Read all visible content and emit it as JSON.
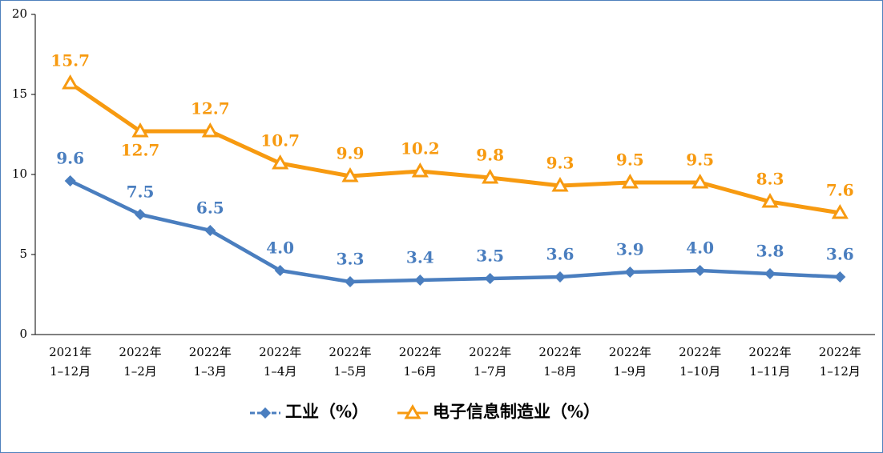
{
  "chart_data": {
    "type": "line",
    "categories": [
      [
        "2021年",
        "1–12月"
      ],
      [
        "2022年",
        "1–2月"
      ],
      [
        "2022年",
        "1–3月"
      ],
      [
        "2022年",
        "1–4月"
      ],
      [
        "2022年",
        "1–5月"
      ],
      [
        "2022年",
        "1–6月"
      ],
      [
        "2022年",
        "1–7月"
      ],
      [
        "2022年",
        "1–8月"
      ],
      [
        "2022年",
        "1–9月"
      ],
      [
        "2022年",
        "1–10月"
      ],
      [
        "2022年",
        "1–11月"
      ],
      [
        "2022年",
        "1–12月"
      ]
    ],
    "series": [
      {
        "name": "工业（%）",
        "color": "#4a7ebf",
        "marker": "diamond",
        "values": [
          9.6,
          7.5,
          6.5,
          4.0,
          3.3,
          3.4,
          3.5,
          3.6,
          3.9,
          4.0,
          3.8,
          3.6
        ],
        "value_labels": [
          "9.6",
          "7.5",
          "6.5",
          "4.0",
          "3.3",
          "3.4",
          "3.5",
          "3.6",
          "3.9",
          "4.0",
          "3.8",
          "3.6"
        ]
      },
      {
        "name": "电子信息制造业（%）",
        "color": "#f79a10",
        "marker": "triangle",
        "values": [
          15.7,
          12.7,
          12.7,
          10.7,
          9.9,
          10.2,
          9.8,
          9.3,
          9.5,
          9.5,
          8.3,
          7.6
        ],
        "value_labels": [
          "15.7",
          "12.7",
          "12.7",
          "10.7",
          "9.9",
          "10.2",
          "9.8",
          "9.3",
          "9.5",
          "9.5",
          "8.3",
          "7.6"
        ]
      }
    ],
    "ylim": [
      0,
      20
    ],
    "yticks": [
      0,
      5,
      10,
      15,
      20
    ],
    "grid": false,
    "legend": "bottom"
  }
}
